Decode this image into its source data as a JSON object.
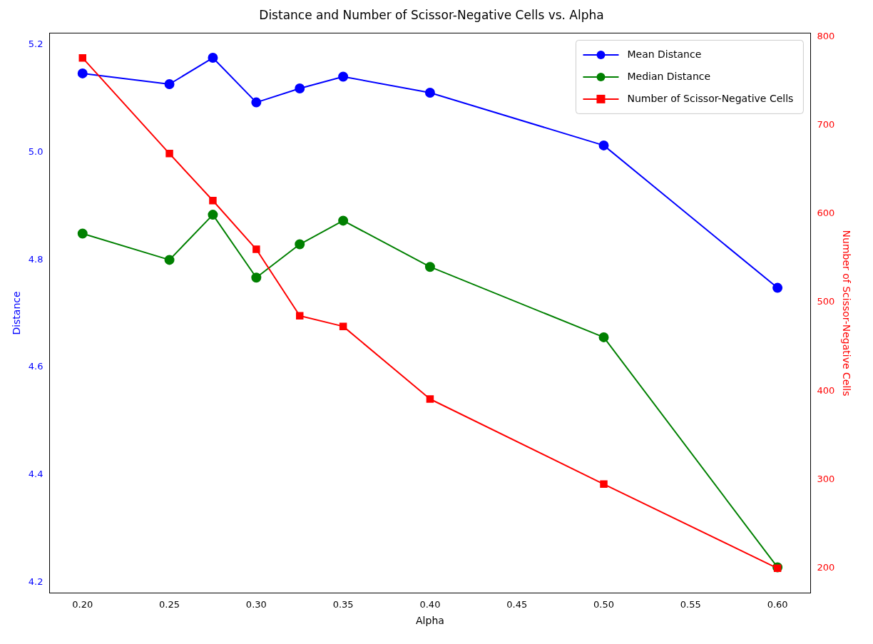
{
  "chart_data": {
    "type": "line",
    "title": "Distance and Number of Scissor-Negative Cells vs. Alpha",
    "xlabel": "Alpha",
    "ylabel": "Distance",
    "y2label": "Number of Scissor-Negative Cells",
    "x": [
      0.2,
      0.25,
      0.275,
      0.3,
      0.325,
      0.35,
      0.4,
      0.5,
      0.6
    ],
    "series": [
      {
        "name": "Mean Distance",
        "color": "#0000ff",
        "marker": "circle",
        "values": [
          5.147,
          5.127,
          5.176,
          5.093,
          5.119,
          5.141,
          5.111,
          5.013,
          4.748
        ]
      },
      {
        "name": "Median Distance",
        "color": "#008000",
        "marker": "circle",
        "values": [
          4.849,
          4.8,
          4.884,
          4.767,
          4.829,
          4.873,
          4.787,
          4.656,
          4.228
        ]
      },
      {
        "name": "Number of Scissor-Negative Cells",
        "color": "#ff0000",
        "marker": "square",
        "axis": "y2",
        "values": [
          776,
          668,
          615,
          560,
          485,
          473,
          391,
          295,
          200
        ]
      }
    ],
    "xlim": [
      0.181,
      0.619
    ],
    "xticks": [
      {
        "value": 0.2,
        "label": "0.20"
      },
      {
        "value": 0.25,
        "label": "0.25"
      },
      {
        "value": 0.3,
        "label": "0.30"
      },
      {
        "value": 0.35,
        "label": "0.35"
      },
      {
        "value": 0.4,
        "label": "0.40"
      },
      {
        "value": 0.45,
        "label": "0.45"
      },
      {
        "value": 0.5,
        "label": "0.50"
      },
      {
        "value": 0.55,
        "label": "0.55"
      },
      {
        "value": 0.6,
        "label": "0.60"
      }
    ],
    "ylim": [
      4.18,
      5.222
    ],
    "yticks": [
      {
        "value": 4.2,
        "label": "4.2"
      },
      {
        "value": 4.4,
        "label": "4.4"
      },
      {
        "value": 4.6,
        "label": "4.6"
      },
      {
        "value": 4.8,
        "label": "4.8"
      },
      {
        "value": 5.0,
        "label": "5.0"
      },
      {
        "value": 5.2,
        "label": "5.2"
      }
    ],
    "y2lim": [
      172,
      804
    ],
    "y2ticks": [
      200,
      300,
      400,
      500,
      600,
      700,
      800
    ],
    "legend": "top right",
    "grid": false,
    "line_style": "solid"
  }
}
